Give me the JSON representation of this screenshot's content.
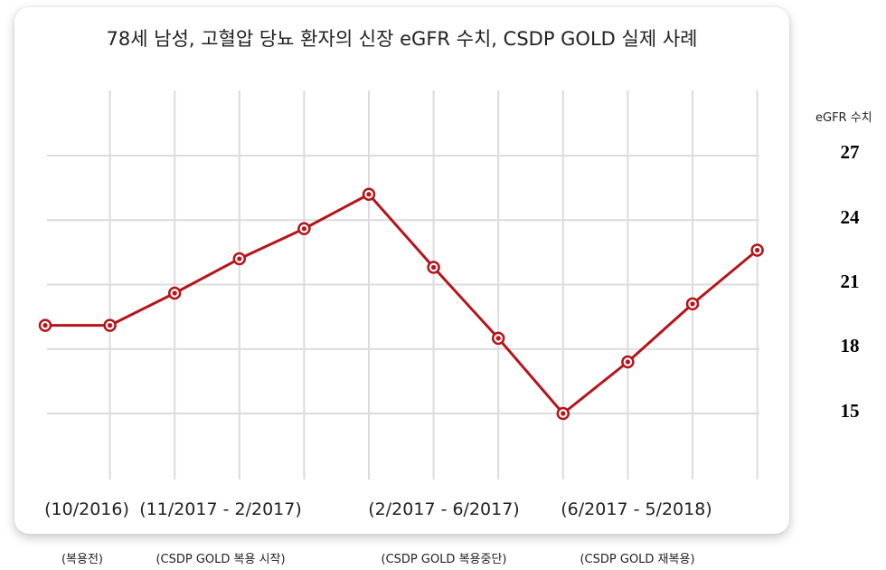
{
  "chart_data": {
    "type": "line",
    "title": "78세 남성, 고혈압 당뇨 환자의 신장 eGFR 수치, CSDP GOLD 실제 사례",
    "ylabel": "eGFR 수치",
    "yticks": [
      27,
      24,
      21,
      18,
      15
    ],
    "ylim": [
      12,
      27
    ],
    "grid": true,
    "x": [
      0,
      1,
      2,
      3,
      4,
      5,
      6,
      7,
      8,
      9,
      10,
      11
    ],
    "series": [
      {
        "values": [
          19.1,
          19.1,
          20.6,
          22.2,
          23.6,
          25.2,
          21.8,
          18.5,
          15.0,
          17.4,
          20.1,
          22.6
        ]
      }
    ],
    "period_labels": [
      {
        "label": "(10/2016)",
        "phase": "(복용전)"
      },
      {
        "label": "(11/2017 - 2/2017)",
        "phase": "(CSDP GOLD 복용 시작)"
      },
      {
        "label": "(2/2017 - 6/2017)",
        "phase": "(CSDP GOLD 복용중단)"
      },
      {
        "label": "(6/2017 - 5/2018)",
        "phase": "(CSDP GOLD 재복용)"
      }
    ],
    "colors": {
      "line": "#b5151b",
      "grid": "#dcdcdc"
    }
  }
}
